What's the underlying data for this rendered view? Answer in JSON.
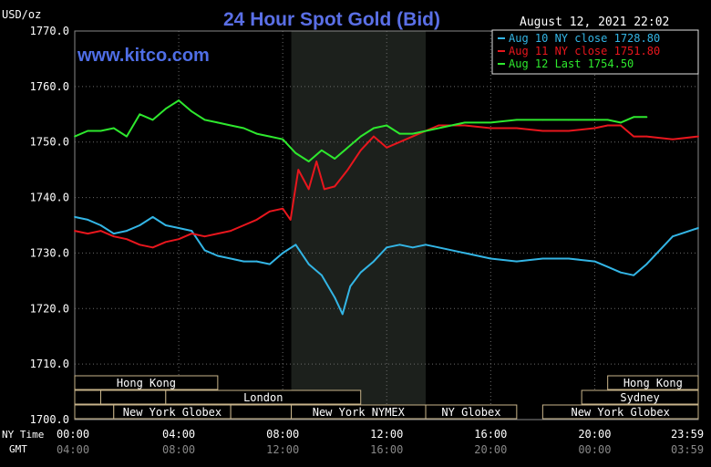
{
  "chart_data": {
    "type": "line",
    "title": "24 Hour Spot Gold (Bid)",
    "unit_label": "USD/oz",
    "watermark": "www.kitco.com",
    "timestamp": "August 12, 2021 22:02",
    "ylim": [
      1700,
      1770
    ],
    "y_ticks": [
      "1770.0",
      "1760.0",
      "1750.0",
      "1740.0",
      "1730.0",
      "1720.0",
      "1710.0",
      "1700.0"
    ],
    "x_row_labels": [
      "NY Time",
      "GMT"
    ],
    "x_ticks_ny": [
      "00:00",
      "04:00",
      "08:00",
      "12:00",
      "16:00",
      "20:00",
      "23:59"
    ],
    "x_ticks_gmt": [
      "04:00",
      "08:00",
      "12:00",
      "16:00",
      "20:00",
      "00:00",
      "03:59"
    ],
    "x_tick_hours": [
      0,
      4,
      8,
      12,
      16,
      20,
      23.983
    ],
    "nymex_shade_hours": [
      8.33,
      13.5
    ],
    "legend": [
      {
        "label": "Aug 10 NY close 1728.80",
        "color": "#33b5e5"
      },
      {
        "label": "Aug 11 NY close 1751.80",
        "color": "#e8161d"
      },
      {
        "label": "Aug 12 Last 1754.50",
        "color": "#2ee82e"
      }
    ],
    "series": [
      {
        "name": "Aug 10 NY close 1728.80",
        "color": "#33b5e5",
        "x": [
          0,
          0.5,
          1,
          1.5,
          2,
          2.5,
          3,
          3.5,
          4,
          4.5,
          5,
          5.5,
          6,
          6.5,
          7,
          7.5,
          8,
          8.5,
          9,
          9.5,
          10,
          10.3,
          10.6,
          11,
          11.5,
          12,
          12.5,
          13,
          13.5,
          14,
          15,
          16,
          17,
          18,
          19,
          20,
          20.5,
          21,
          21.5,
          22,
          23,
          23.983
        ],
        "values": [
          1736.5,
          1736,
          1735,
          1733.5,
          1734,
          1735,
          1736.5,
          1735,
          1734.5,
          1734,
          1730.5,
          1729.5,
          1729,
          1728.5,
          1728.5,
          1728,
          1730,
          1731.5,
          1728,
          1726,
          1722,
          1719,
          1724,
          1726.5,
          1728.5,
          1731,
          1731.5,
          1731,
          1731.5,
          1731,
          1730,
          1729,
          1728.5,
          1729,
          1729,
          1728.5,
          1727.5,
          1726.5,
          1726,
          1728,
          1733,
          1734.5
        ]
      },
      {
        "name": "Aug 11 NY close 1751.80",
        "color": "#e8161d",
        "x": [
          0,
          0.5,
          1,
          1.5,
          2,
          2.5,
          3,
          3.5,
          4,
          4.5,
          5,
          5.5,
          6,
          6.5,
          7,
          7.5,
          8,
          8.3,
          8.6,
          9,
          9.3,
          9.6,
          10,
          10.5,
          11,
          11.5,
          12,
          12.5,
          13,
          13.5,
          14,
          15,
          16,
          17,
          18,
          19,
          20,
          20.5,
          21,
          21.5,
          22,
          23,
          23.983
        ],
        "values": [
          1734,
          1733.5,
          1734,
          1733,
          1732.5,
          1731.5,
          1731,
          1732,
          1732.5,
          1733.5,
          1733,
          1733.5,
          1734,
          1735,
          1736,
          1737.5,
          1738,
          1736,
          1745,
          1741.5,
          1746.5,
          1741.5,
          1742,
          1745,
          1748.5,
          1751,
          1749,
          1750,
          1751,
          1752,
          1753,
          1753,
          1752.5,
          1752.5,
          1752,
          1752,
          1752.5,
          1753,
          1753,
          1751,
          1751,
          1750.5,
          1751
        ]
      },
      {
        "name": "Aug 12 Last 1754.50",
        "color": "#2ee82e",
        "x": [
          0,
          0.5,
          1,
          1.5,
          2,
          2.5,
          3,
          3.5,
          4,
          4.5,
          5,
          5.5,
          6,
          6.5,
          7,
          7.5,
          8,
          8.5,
          9,
          9.5,
          10,
          10.5,
          11,
          11.5,
          12,
          12.5,
          13,
          14,
          15,
          16,
          17,
          18,
          19,
          20,
          20.5,
          21,
          21.5,
          22
        ],
        "values": [
          1751,
          1752,
          1752,
          1752.5,
          1751,
          1755,
          1754,
          1756,
          1757.5,
          1755.5,
          1754,
          1753.5,
          1753,
          1752.5,
          1751.5,
          1751,
          1750.5,
          1748,
          1746.5,
          1748.5,
          1747,
          1749,
          1751,
          1752.5,
          1753,
          1751.5,
          1751.5,
          1752.5,
          1753.5,
          1753.5,
          1754,
          1754,
          1754,
          1754,
          1754,
          1753.5,
          1754.5,
          1754.5
        ]
      }
    ],
    "session_bars": [
      {
        "label": "Hong Kong",
        "start": 0,
        "end": 5.5,
        "row": 0
      },
      {
        "label": "Hong Kong",
        "start": 20.5,
        "end": 23.983,
        "row": 0
      },
      {
        "label": "",
        "start": 0,
        "end": 1,
        "row": 1
      },
      {
        "label": "",
        "start": 1,
        "end": 3.5,
        "row": 1
      },
      {
        "label": "London",
        "start": 3.5,
        "end": 11,
        "row": 1
      },
      {
        "label": "Sydney",
        "start": 19.5,
        "end": 23.983,
        "row": 1
      },
      {
        "label": "",
        "start": 0,
        "end": 1.5,
        "row": 2
      },
      {
        "label": "New York Globex",
        "start": 1.5,
        "end": 6,
        "row": 2
      },
      {
        "label": "",
        "start": 6,
        "end": 8.33,
        "row": 2
      },
      {
        "label": "New York NYMEX",
        "start": 8.33,
        "end": 13.5,
        "row": 2
      },
      {
        "label": "NY Globex",
        "start": 13.5,
        "end": 17,
        "row": 2
      },
      {
        "label": "New York Globex",
        "start": 18,
        "end": 23.983,
        "row": 2
      }
    ]
  }
}
